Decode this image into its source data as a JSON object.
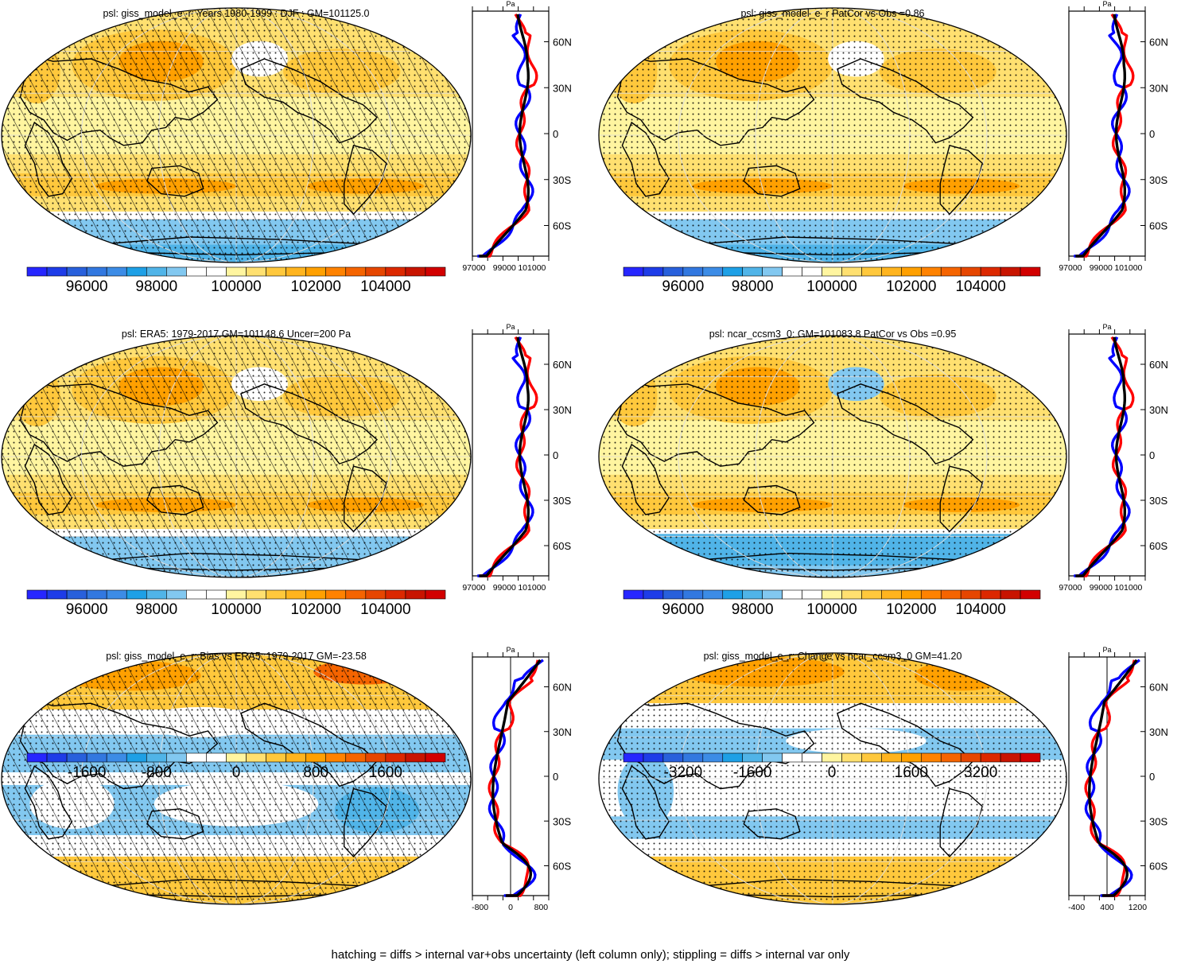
{
  "chart_data": {
    "type": "map",
    "panels": [
      {
        "id": "model-climatology",
        "title": "psl: giss_model_e_r: Years 1980-1999 : DJF : GM=101125.0",
        "hatching": true,
        "colorbar": {
          "ticks": [
            "96000",
            "98000",
            "100000",
            "102000",
            "104000"
          ]
        },
        "zonal_mean": {
          "unit": "Pa",
          "xticks": [
            "97000",
            "99000",
            "101000"
          ],
          "zero_line": false
        }
      },
      {
        "id": "model-patcor",
        "title": "psl: giss_model_e_r PatCor vs Obs =0.86",
        "hatching": false,
        "colorbar": {
          "ticks": [
            "96000",
            "98000",
            "100000",
            "102000",
            "104000"
          ]
        },
        "zonal_mean": {
          "unit": "Pa",
          "xticks": [
            "97000",
            "99000",
            "101000"
          ],
          "zero_line": false
        }
      },
      {
        "id": "obs-era5",
        "title": "psl: ERA5: 1979-2017 GM=101148.6 Uncer=200 Pa",
        "hatching": true,
        "colorbar": {
          "ticks": [
            "96000",
            "98000",
            "100000",
            "102000",
            "104000"
          ]
        },
        "zonal_mean": {
          "unit": "Pa",
          "xticks": [
            "97000",
            "99000",
            "101000"
          ],
          "zero_line": false
        }
      },
      {
        "id": "ref-model",
        "title": "psl: ncar_ccsm3_0: GM=101083.8 PatCor vs Obs =0.95",
        "hatching": false,
        "colorbar": {
          "ticks": [
            "96000",
            "98000",
            "100000",
            "102000",
            "104000"
          ]
        },
        "zonal_mean": {
          "unit": "Pa",
          "xticks": [
            "97000",
            "99000",
            "101000"
          ],
          "zero_line": false
        }
      },
      {
        "id": "bias",
        "title": "psl: giss_model_e_r: Bias vs ERA5: 1979-2017 GM=-23.58",
        "hatching": true,
        "colorbar": {
          "ticks": [
            "-1600",
            "-800",
            "0",
            "800",
            "1600"
          ]
        },
        "zonal_mean": {
          "unit": "Pa",
          "xticks": [
            "-800",
            "0",
            "800"
          ],
          "zero_line": true
        }
      },
      {
        "id": "change",
        "title": "psl: giss_model_e_r: Change vs ncar_ccsm3_0 GM=41.20",
        "hatching": false,
        "colorbar": {
          "ticks": [
            "-3200",
            "-1600",
            "0",
            "1600",
            "3200"
          ]
        },
        "zonal_mean": {
          "unit": "Pa",
          "xticks": [
            "-400",
            "400",
            "1200"
          ],
          "zero_line": true
        }
      }
    ],
    "lat_ticks": [
      "60N",
      "30N",
      "0",
      "30S",
      "60S"
    ],
    "colormap": [
      "#2626ff",
      "#1e3ce8",
      "#2860dc",
      "#3278e0",
      "#3c8ce6",
      "#1ea0e6",
      "#50b4e8",
      "#82c8f0",
      "#ffffff",
      "#ffffff",
      "#fff5a0",
      "#ffe070",
      "#ffc83c",
      "#ffb41e",
      "#ffa000",
      "#ff8200",
      "#f56400",
      "#e64600",
      "#dc2800",
      "#c81400",
      "#d20000"
    ],
    "line_colors": {
      "model": "#ff0000",
      "reference": "#0000ff",
      "obs": "#000000"
    },
    "footer": "hatching = diffs > internal var+obs uncertainty (left column only); stippling = diffs > internal var only"
  }
}
